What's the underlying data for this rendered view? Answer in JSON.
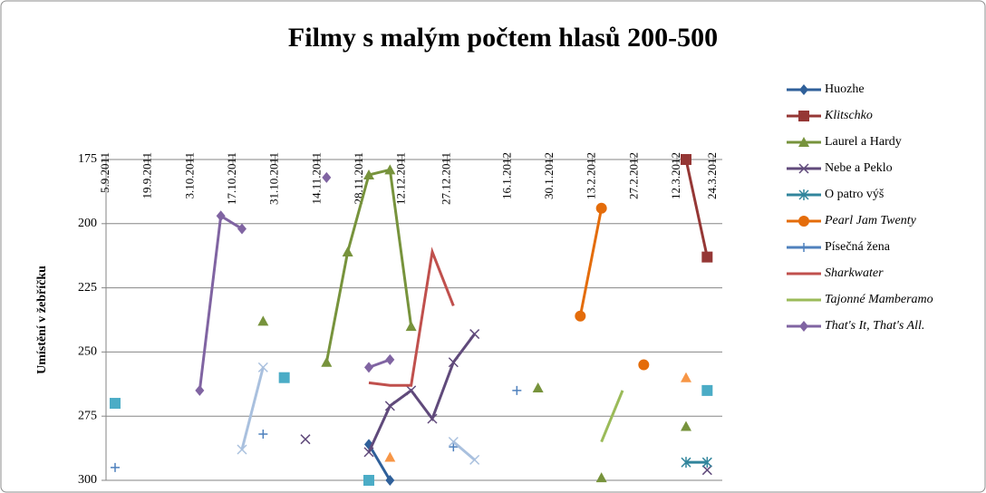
{
  "chart_data": {
    "type": "line",
    "title": "Filmy s malým počtem hlasů 200-500",
    "y_label": "Umístění v žebříčku",
    "ylim": [
      175,
      300
    ],
    "y_reversed": true,
    "yticks": [
      175,
      200,
      225,
      250,
      275,
      300
    ],
    "grid": true,
    "xlim": [
      "5.9.2011",
      "27.3.2012"
    ],
    "x_axis_position": "top",
    "xticks": [
      "5.9.2011",
      "19.9.2011",
      "3.10.2011",
      "17.10.2011",
      "31.10.2011",
      "14.11.2011",
      "28.11.2011",
      "12.12.2011",
      "27.12.2011",
      "16.1.2012",
      "30.1.2012",
      "13.2.2012",
      "27.2.2012",
      "12.3.2012",
      "24.3.2012"
    ],
    "x": [
      "8.9.2011",
      "15.9.2011",
      "22.9.2011",
      "29.9.2011",
      "6.10.2011",
      "13.10.2011",
      "20.10.2011",
      "27.10.2011",
      "3.11.2011",
      "10.11.2011",
      "17.11.2011",
      "24.11.2011",
      "1.12.2011",
      "8.12.2011",
      "15.12.2011",
      "22.12.2011",
      "29.12.2011",
      "5.1.2012",
      "12.1.2012",
      "19.1.2012",
      "26.1.2012",
      "2.2.2012",
      "9.2.2012",
      "16.2.2012",
      "23.2.2012",
      "1.3.2012",
      "8.3.2012",
      "15.3.2012",
      "22.3.2012"
    ],
    "legend": "right",
    "series": [
      {
        "name": "Huozhe",
        "color": "#2f609a",
        "marker": "diamond",
        "values": [
          null,
          null,
          null,
          null,
          null,
          null,
          null,
          null,
          null,
          null,
          null,
          null,
          286,
          300,
          null,
          null,
          null,
          null,
          null,
          null,
          null,
          null,
          null,
          null,
          null,
          null,
          null,
          null,
          null
        ]
      },
      {
        "name": "Klitschko",
        "color": "#953735",
        "marker": "square",
        "italic": true,
        "values": [
          null,
          null,
          null,
          null,
          null,
          null,
          null,
          null,
          null,
          null,
          null,
          null,
          null,
          null,
          null,
          null,
          null,
          null,
          null,
          null,
          null,
          null,
          null,
          null,
          null,
          null,
          null,
          175,
          213
        ]
      },
      {
        "name": "Laurel a Hardy",
        "color": "#77933c",
        "marker": "triangle",
        "values": [
          null,
          null,
          null,
          null,
          null,
          null,
          null,
          238,
          null,
          null,
          254,
          211,
          181,
          179,
          240,
          null,
          null,
          null,
          null,
          null,
          264,
          null,
          null,
          299,
          null,
          null,
          null,
          279,
          null
        ]
      },
      {
        "name": "Nebe a Peklo",
        "color": "#604a7b",
        "marker": "x",
        "values": [
          null,
          null,
          null,
          null,
          null,
          null,
          null,
          null,
          null,
          284,
          null,
          null,
          289,
          271,
          265,
          276,
          254,
          243,
          null,
          null,
          null,
          null,
          null,
          null,
          null,
          null,
          null,
          null,
          296
        ]
      },
      {
        "name": "O patro výš",
        "color": "#31859c",
        "marker": "asterisk",
        "values": [
          null,
          null,
          null,
          null,
          null,
          null,
          null,
          null,
          null,
          null,
          null,
          null,
          null,
          null,
          null,
          null,
          null,
          null,
          null,
          null,
          null,
          null,
          null,
          null,
          null,
          null,
          null,
          293,
          293
        ]
      },
      {
        "name": "Pearl Jam Twenty",
        "color": "#e46c0a",
        "marker": "circle",
        "italic": true,
        "values": [
          null,
          null,
          null,
          null,
          null,
          null,
          null,
          null,
          null,
          null,
          null,
          null,
          null,
          null,
          null,
          null,
          null,
          null,
          null,
          null,
          null,
          null,
          236,
          194,
          null,
          255,
          null,
          null,
          null
        ]
      },
      {
        "name": "Písečná žena",
        "color": "#4f81bd",
        "marker": "plus",
        "values": [
          295,
          null,
          null,
          null,
          null,
          null,
          null,
          282,
          null,
          null,
          null,
          null,
          null,
          null,
          null,
          null,
          287,
          null,
          null,
          265,
          null,
          null,
          null,
          null,
          null,
          null,
          null,
          null,
          null
        ]
      },
      {
        "name": "Sharkwater",
        "color": "#c0504d",
        "marker": "none",
        "italic": true,
        "values": [
          null,
          null,
          null,
          null,
          null,
          null,
          null,
          null,
          null,
          null,
          null,
          null,
          262,
          263,
          263,
          211,
          232,
          null,
          null,
          null,
          null,
          null,
          null,
          null,
          null,
          null,
          null,
          null,
          null
        ]
      },
      {
        "name": "Tajonné Mamberamo",
        "color": "#9bbb59",
        "marker": "none",
        "italic": true,
        "values": [
          null,
          null,
          null,
          null,
          null,
          null,
          null,
          null,
          null,
          null,
          null,
          null,
          null,
          null,
          null,
          null,
          null,
          null,
          null,
          null,
          null,
          null,
          null,
          285,
          265,
          null,
          null,
          null,
          null
        ]
      },
      {
        "name": "That's It, That's All.",
        "color": "#8064a2",
        "marker": "diamond",
        "italic": true,
        "values": [
          null,
          null,
          null,
          null,
          265,
          197,
          202,
          null,
          null,
          null,
          182,
          null,
          256,
          253,
          null,
          null,
          null,
          null,
          null,
          null,
          null,
          null,
          null,
          null,
          null,
          null,
          null,
          null,
          null
        ]
      },
      {
        "color": "#4bacc6",
        "marker": "square",
        "values": [
          270,
          null,
          null,
          null,
          null,
          null,
          null,
          null,
          260,
          null,
          null,
          null,
          300,
          null,
          null,
          null,
          null,
          null,
          null,
          null,
          null,
          null,
          null,
          null,
          null,
          null,
          null,
          null,
          265
        ]
      },
      {
        "color": "#f79646",
        "marker": "triangle",
        "values": [
          null,
          null,
          null,
          null,
          null,
          null,
          null,
          null,
          null,
          null,
          null,
          null,
          null,
          291,
          null,
          null,
          null,
          null,
          null,
          null,
          null,
          null,
          null,
          null,
          null,
          null,
          null,
          260,
          null
        ]
      },
      {
        "color": "#a9c0de",
        "marker": "x",
        "values": [
          null,
          null,
          null,
          null,
          null,
          null,
          288,
          256,
          null,
          null,
          null,
          null,
          null,
          null,
          null,
          null,
          285,
          292,
          null,
          null,
          null,
          null,
          null,
          null,
          null,
          null,
          null,
          null,
          null
        ]
      }
    ]
  }
}
